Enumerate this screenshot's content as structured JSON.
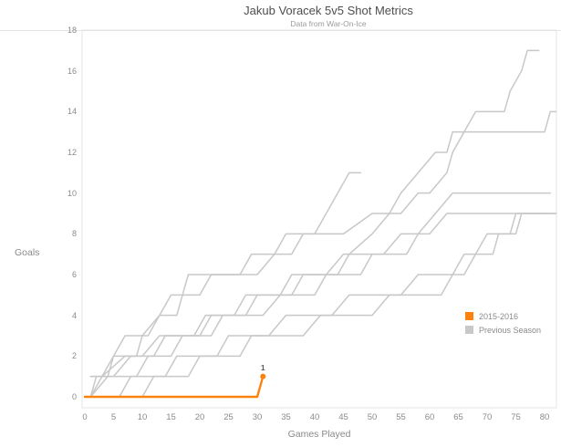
{
  "title": "Jakub Voracek 5v5 Shot Metrics",
  "subtitle": "Data from War-On-Ice",
  "axes": {
    "y": {
      "label": "Goals",
      "ticks": [
        0,
        2,
        4,
        6,
        8,
        10,
        12,
        14,
        16,
        18
      ]
    },
    "x": {
      "label": "Games Played",
      "ticks": [
        0,
        5,
        10,
        15,
        20,
        25,
        30,
        35,
        40,
        45,
        50,
        55,
        60,
        65,
        70,
        75,
        80
      ]
    }
  },
  "legend": {
    "items": [
      {
        "label": "2015-2016",
        "color": "#fb820f"
      },
      {
        "label": "Previous Season",
        "color": "#c8c8c8"
      }
    ]
  },
  "annotation": {
    "text": "1"
  },
  "colors": {
    "current_season": "#fb820f",
    "previous_season": "#c8c8c8",
    "axis_text": "#8a8a8a",
    "border": "#e4e4e4"
  },
  "chart_data": {
    "type": "line",
    "title": "Jakub Voracek 5v5 Shot Metrics",
    "subtitle": "Data from War-On-Ice",
    "xlabel": "Games Played",
    "ylabel": "Goals",
    "xlim": [
      0,
      82
    ],
    "ylim": [
      0,
      18
    ],
    "grid": false,
    "legend_position": "right-middle",
    "series": [
      {
        "name": "Previous Season",
        "color": "#c8c8c8",
        "final_goals": 17,
        "points": [
          [
            1,
            0
          ],
          [
            3,
            1
          ],
          [
            7,
            2
          ],
          [
            9,
            2
          ],
          [
            10,
            3
          ],
          [
            13,
            4
          ],
          [
            16,
            4
          ],
          [
            17,
            5
          ],
          [
            18,
            6
          ],
          [
            30,
            6
          ],
          [
            33,
            7
          ],
          [
            36,
            7
          ],
          [
            38,
            8
          ],
          [
            45,
            8
          ],
          [
            50,
            9
          ],
          [
            55,
            9
          ],
          [
            58,
            10
          ],
          [
            60,
            10
          ],
          [
            63,
            11
          ],
          [
            64,
            12
          ],
          [
            66,
            13
          ],
          [
            68,
            14
          ],
          [
            73,
            14
          ],
          [
            74,
            15
          ],
          [
            76,
            16
          ],
          [
            77,
            17
          ],
          [
            79,
            17
          ]
        ]
      },
      {
        "name": "Previous Season",
        "color": "#c8c8c8",
        "final_goals": 14,
        "points": [
          [
            1,
            1
          ],
          [
            5,
            1
          ],
          [
            8,
            2
          ],
          [
            12,
            2
          ],
          [
            14,
            3
          ],
          [
            20,
            3
          ],
          [
            22,
            4
          ],
          [
            28,
            4
          ],
          [
            30,
            5
          ],
          [
            36,
            5
          ],
          [
            38,
            6
          ],
          [
            44,
            6
          ],
          [
            46,
            7
          ],
          [
            50,
            8
          ],
          [
            53,
            9
          ],
          [
            55,
            10
          ],
          [
            58,
            11
          ],
          [
            61,
            12
          ],
          [
            63,
            12
          ],
          [
            64,
            13
          ],
          [
            80,
            13
          ],
          [
            81,
            14
          ],
          [
            82,
            14
          ]
        ]
      },
      {
        "name": "Previous Season",
        "color": "#c8c8c8",
        "final_goals": 10,
        "points": [
          [
            1,
            0
          ],
          [
            4,
            1
          ],
          [
            9,
            1
          ],
          [
            11,
            2
          ],
          [
            15,
            2
          ],
          [
            17,
            3
          ],
          [
            22,
            3
          ],
          [
            24,
            4
          ],
          [
            31,
            4
          ],
          [
            34,
            5
          ],
          [
            40,
            5
          ],
          [
            42,
            6
          ],
          [
            48,
            6
          ],
          [
            50,
            7
          ],
          [
            56,
            7
          ],
          [
            58,
            8
          ],
          [
            61,
            9
          ],
          [
            64,
            10
          ],
          [
            81,
            10
          ]
        ]
      },
      {
        "name": "Previous Season",
        "color": "#c8c8c8",
        "final_goals": 9,
        "points": [
          [
            1,
            1
          ],
          [
            3,
            1
          ],
          [
            5,
            2
          ],
          [
            10,
            2
          ],
          [
            13,
            3
          ],
          [
            19,
            3
          ],
          [
            21,
            4
          ],
          [
            26,
            4
          ],
          [
            28,
            5
          ],
          [
            34,
            5
          ],
          [
            36,
            6
          ],
          [
            42,
            6
          ],
          [
            45,
            7
          ],
          [
            52,
            7
          ],
          [
            55,
            8
          ],
          [
            60,
            8
          ],
          [
            63,
            9
          ],
          [
            82,
            9
          ]
        ]
      },
      {
        "name": "Previous Season",
        "color": "#c8c8c8",
        "final_goals": 9,
        "points": [
          [
            1,
            0
          ],
          [
            6,
            0
          ],
          [
            8,
            1
          ],
          [
            14,
            1
          ],
          [
            16,
            2
          ],
          [
            23,
            2
          ],
          [
            25,
            3
          ],
          [
            32,
            3
          ],
          [
            35,
            4
          ],
          [
            43,
            4
          ],
          [
            46,
            5
          ],
          [
            55,
            5
          ],
          [
            58,
            6
          ],
          [
            64,
            6
          ],
          [
            66,
            7
          ],
          [
            71,
            7
          ],
          [
            72,
            8
          ],
          [
            75,
            8
          ],
          [
            76,
            9
          ],
          [
            80,
            9
          ]
        ]
      },
      {
        "name": "Previous Season",
        "color": "#c8c8c8",
        "final_goals": 9,
        "points": [
          [
            1,
            0
          ],
          [
            10,
            0
          ],
          [
            12,
            1
          ],
          [
            18,
            1
          ],
          [
            20,
            2
          ],
          [
            27,
            2
          ],
          [
            29,
            3
          ],
          [
            38,
            3
          ],
          [
            41,
            4
          ],
          [
            50,
            4
          ],
          [
            53,
            5
          ],
          [
            62,
            5
          ],
          [
            64,
            6
          ],
          [
            66,
            6
          ],
          [
            68,
            7
          ],
          [
            70,
            8
          ],
          [
            74,
            8
          ],
          [
            75,
            9
          ],
          [
            82,
            9
          ]
        ]
      },
      {
        "name": "Previous Season",
        "color": "#c8c8c8",
        "final_goals": 11,
        "points": [
          [
            1,
            0
          ],
          [
            2,
            1
          ],
          [
            4,
            1
          ],
          [
            5,
            2
          ],
          [
            7,
            3
          ],
          [
            11,
            3
          ],
          [
            13,
            4
          ],
          [
            15,
            5
          ],
          [
            20,
            5
          ],
          [
            22,
            6
          ],
          [
            27,
            6
          ],
          [
            29,
            7
          ],
          [
            33,
            7
          ],
          [
            35,
            8
          ],
          [
            40,
            8
          ],
          [
            42,
            9
          ],
          [
            44,
            10
          ],
          [
            46,
            11
          ],
          [
            48,
            11
          ]
        ]
      },
      {
        "name": "2015-2016",
        "color": "#fb820f",
        "current": true,
        "final_goals": 1,
        "end_label": "1",
        "points": [
          [
            0,
            0
          ],
          [
            30,
            0
          ],
          [
            31,
            1
          ]
        ]
      }
    ]
  }
}
